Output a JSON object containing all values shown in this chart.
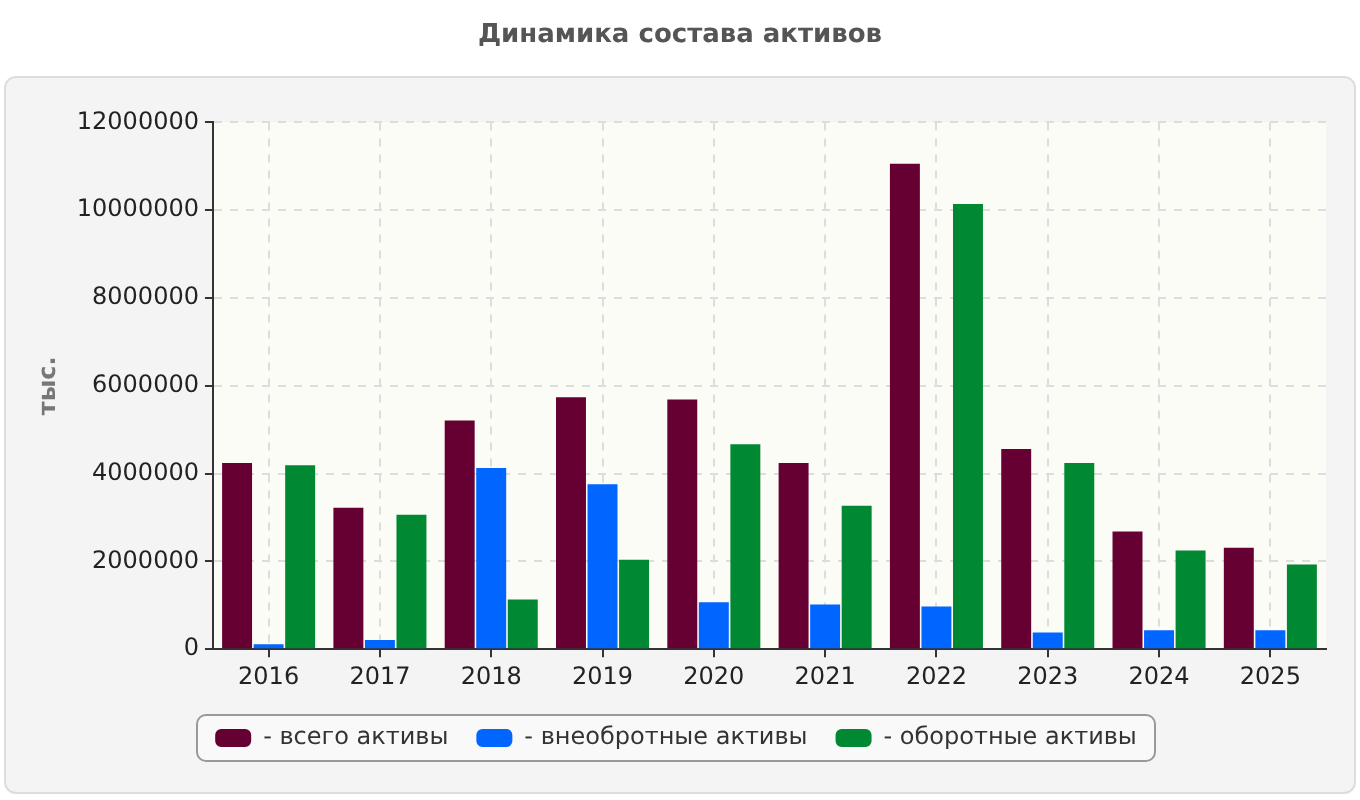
{
  "chart_data": {
    "type": "bar",
    "title": "Динамика состава активов",
    "ylabel": "тыс.",
    "categories": [
      "2016",
      "2017",
      "2018",
      "2019",
      "2020",
      "2021",
      "2022",
      "2023",
      "2024",
      "2025"
    ],
    "series": [
      {
        "name": "- всего активы",
        "color": "#660033",
        "values": [
          4240000,
          3220000,
          5210000,
          5740000,
          5690000,
          4240000,
          11060000,
          4560000,
          2680000,
          2310000
        ]
      },
      {
        "name": "- внеобротные активы",
        "color": "#0066ff",
        "values": [
          110000,
          210000,
          4130000,
          3760000,
          1070000,
          1020000,
          970000,
          380000,
          430000,
          430000
        ]
      },
      {
        "name": "- оборотные активы",
        "color": "#008833",
        "values": [
          4190000,
          3060000,
          1130000,
          2040000,
          4670000,
          3270000,
          10140000,
          4240000,
          2250000,
          1930000
        ]
      }
    ],
    "ylim": [
      0,
      12000000
    ],
    "yticks": [
      0,
      2000000,
      4000000,
      6000000,
      8000000,
      10000000,
      12000000
    ],
    "grid": true,
    "legend": "bottom"
  }
}
